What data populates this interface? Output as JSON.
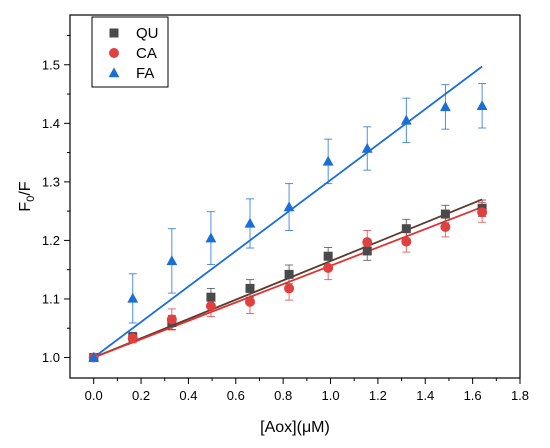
{
  "chart_data": {
    "type": "scatter",
    "xlabel": "[Aox](μM)",
    "ylabel": "F0/F",
    "xlim": [
      -0.1,
      1.8
    ],
    "ylim": [
      0.965,
      1.585
    ],
    "xticks": [
      0.0,
      0.2,
      0.4,
      0.6,
      0.8,
      1.0,
      1.2,
      1.4,
      1.6,
      1.8
    ],
    "yticks": [
      1.0,
      1.1,
      1.2,
      1.3,
      1.4,
      1.5
    ],
    "legend_position": "top-left",
    "series": [
      {
        "name": "QU",
        "marker": "square",
        "color": "#4a4a4a",
        "line_color": "#5a3a2a",
        "x": [
          0.0,
          0.165,
          0.33,
          0.495,
          0.66,
          0.825,
          0.99,
          1.155,
          1.32,
          1.485,
          1.64
        ],
        "y": [
          1.0,
          1.035,
          1.06,
          1.103,
          1.118,
          1.142,
          1.173,
          1.182,
          1.22,
          1.245,
          1.255
        ],
        "err": [
          0.004,
          0.008,
          0.012,
          0.015,
          0.015,
          0.016,
          0.015,
          0.016,
          0.016,
          0.015,
          0.014
        ],
        "fit": [
          [
            0.0,
            1.0
          ],
          [
            1.64,
            1.27
          ]
        ]
      },
      {
        "name": "CA",
        "marker": "circle",
        "color": "#e04040",
        "line_color": "#e03030",
        "x": [
          0.0,
          0.165,
          0.33,
          0.495,
          0.66,
          0.825,
          0.99,
          1.155,
          1.32,
          1.485,
          1.64
        ],
        "y": [
          1.0,
          1.033,
          1.065,
          1.088,
          1.095,
          1.118,
          1.153,
          1.197,
          1.198,
          1.223,
          1.248
        ],
        "err": [
          0.004,
          0.008,
          0.018,
          0.018,
          0.02,
          0.02,
          0.02,
          0.02,
          0.018,
          0.017,
          0.017
        ],
        "fit": [
          [
            0.0,
            1.0
          ],
          [
            1.64,
            1.257
          ]
        ]
      },
      {
        "name": "FA",
        "marker": "triangle",
        "color": "#1a6fd6",
        "line_color": "#1a6fd6",
        "x": [
          0.0,
          0.165,
          0.33,
          0.495,
          0.66,
          0.825,
          0.99,
          1.155,
          1.32,
          1.485,
          1.64
        ],
        "y": [
          1.0,
          1.101,
          1.165,
          1.204,
          1.229,
          1.257,
          1.335,
          1.357,
          1.405,
          1.428,
          1.43
        ],
        "err": [
          0.004,
          0.042,
          0.055,
          0.045,
          0.042,
          0.04,
          0.038,
          0.037,
          0.038,
          0.038,
          0.038
        ],
        "fit": [
          [
            0.0,
            1.0
          ],
          [
            1.64,
            1.497
          ]
        ]
      }
    ]
  }
}
